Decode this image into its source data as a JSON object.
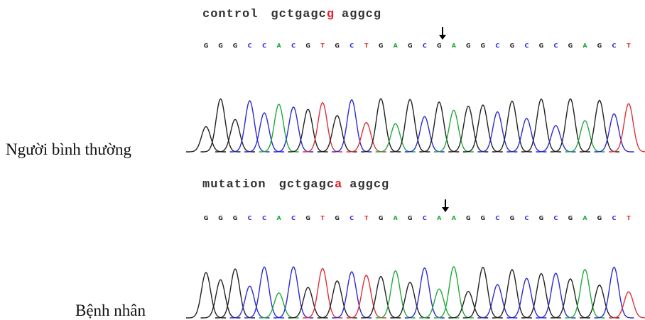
{
  "panels": [
    {
      "label": "Người bình thường",
      "heading": {
        "name": "control",
        "before": "gctgagc",
        "variant": "g",
        "after": "aggcg"
      },
      "bases": [
        "G",
        "G",
        "G",
        "C",
        "C",
        "A",
        "C",
        "G",
        "T",
        "G",
        "C",
        "T",
        "G",
        "A",
        "G",
        "C",
        "G",
        "A",
        "G",
        "G",
        "C",
        "G",
        "C",
        "G",
        "C",
        "G",
        "A",
        "G",
        "C",
        "T"
      ]
    },
    {
      "label": "Bệnh nhân",
      "heading": {
        "name": "mutation",
        "before": "gctgagc",
        "variant": "a",
        "after": "aggcg"
      },
      "bases": [
        "G",
        "G",
        "G",
        "C",
        "C",
        "A",
        "C",
        "G",
        "T",
        "G",
        "C",
        "T",
        "G",
        "A",
        "G",
        "C",
        "A",
        "A",
        "G",
        "G",
        "C",
        "G",
        "C",
        "G",
        "C",
        "G",
        "A",
        "G",
        "C",
        "T"
      ]
    }
  ]
}
